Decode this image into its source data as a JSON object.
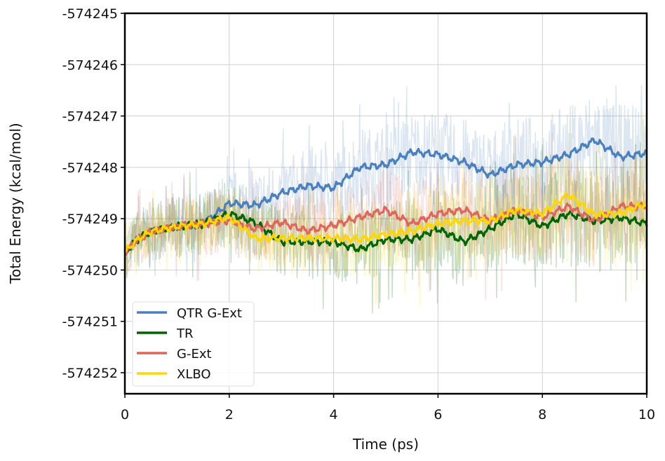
{
  "chart_data": {
    "type": "line",
    "title": "",
    "xlabel": "Time (ps)",
    "ylabel": "Total Energy (kcal/mol)",
    "xlim": [
      0,
      10
    ],
    "ylim": [
      -574252.41,
      -574245
    ],
    "xticks": [
      0,
      2,
      4,
      6,
      8,
      10
    ],
    "yticks": [
      -574245,
      -574246,
      -574247,
      -574248,
      -574249,
      -574250,
      -574251,
      -574252
    ],
    "grid": true,
    "legend_placement": "lower-left",
    "x": [
      0,
      0.25,
      0.5,
      1,
      1.5,
      2,
      2.5,
      3,
      3.5,
      4,
      4.5,
      5,
      5.5,
      6,
      6.5,
      7,
      7.5,
      8,
      8.5,
      9,
      9.5,
      10
    ],
    "series": [
      {
        "name": "QTR G-Ext",
        "color": "#4a80c0",
        "values": [
          -574249.65,
          -574249.4,
          -574249.25,
          -574249.15,
          -574249.1,
          -574248.7,
          -574248.74,
          -574248.5,
          -574248.36,
          -574248.4,
          -574248.0,
          -574247.95,
          -574247.7,
          -574247.75,
          -574247.9,
          -574248.15,
          -574247.95,
          -574247.9,
          -574247.75,
          -574247.47,
          -574247.8,
          -574247.72
        ]
      },
      {
        "name": "TR",
        "color": "#006400",
        "values": [
          -574249.65,
          -574249.4,
          -574249.25,
          -574249.15,
          -574249.1,
          -574248.9,
          -574249.08,
          -574249.45,
          -574249.45,
          -574249.45,
          -574249.6,
          -574249.4,
          -574249.4,
          -574249.2,
          -574249.45,
          -574249.2,
          -574248.9,
          -574249.15,
          -574248.9,
          -574249.05,
          -574248.98,
          -574249.1
        ]
      },
      {
        "name": "G-Ext",
        "color": "#e0665c",
        "values": [
          -574249.65,
          -574249.4,
          -574249.25,
          -574249.15,
          -574249.1,
          -574249.04,
          -574249.2,
          -574249.07,
          -574249.24,
          -574249.13,
          -574248.97,
          -574248.83,
          -574249.1,
          -574248.9,
          -574248.83,
          -574249.04,
          -574248.83,
          -574248.97,
          -574248.76,
          -574249.04,
          -574248.76,
          -574248.76
        ]
      },
      {
        "name": "XLBO",
        "color": "#ffd700",
        "values": [
          -574249.65,
          -574249.4,
          -574249.25,
          -574249.15,
          -574249.1,
          -574248.97,
          -574249.38,
          -574249.38,
          -574249.38,
          -574249.38,
          -574249.4,
          -574249.31,
          -574249.24,
          -574249.1,
          -574249.04,
          -574249.04,
          -574248.83,
          -574248.9,
          -574248.53,
          -574248.92,
          -574248.9,
          -574248.69
        ]
      }
    ]
  }
}
